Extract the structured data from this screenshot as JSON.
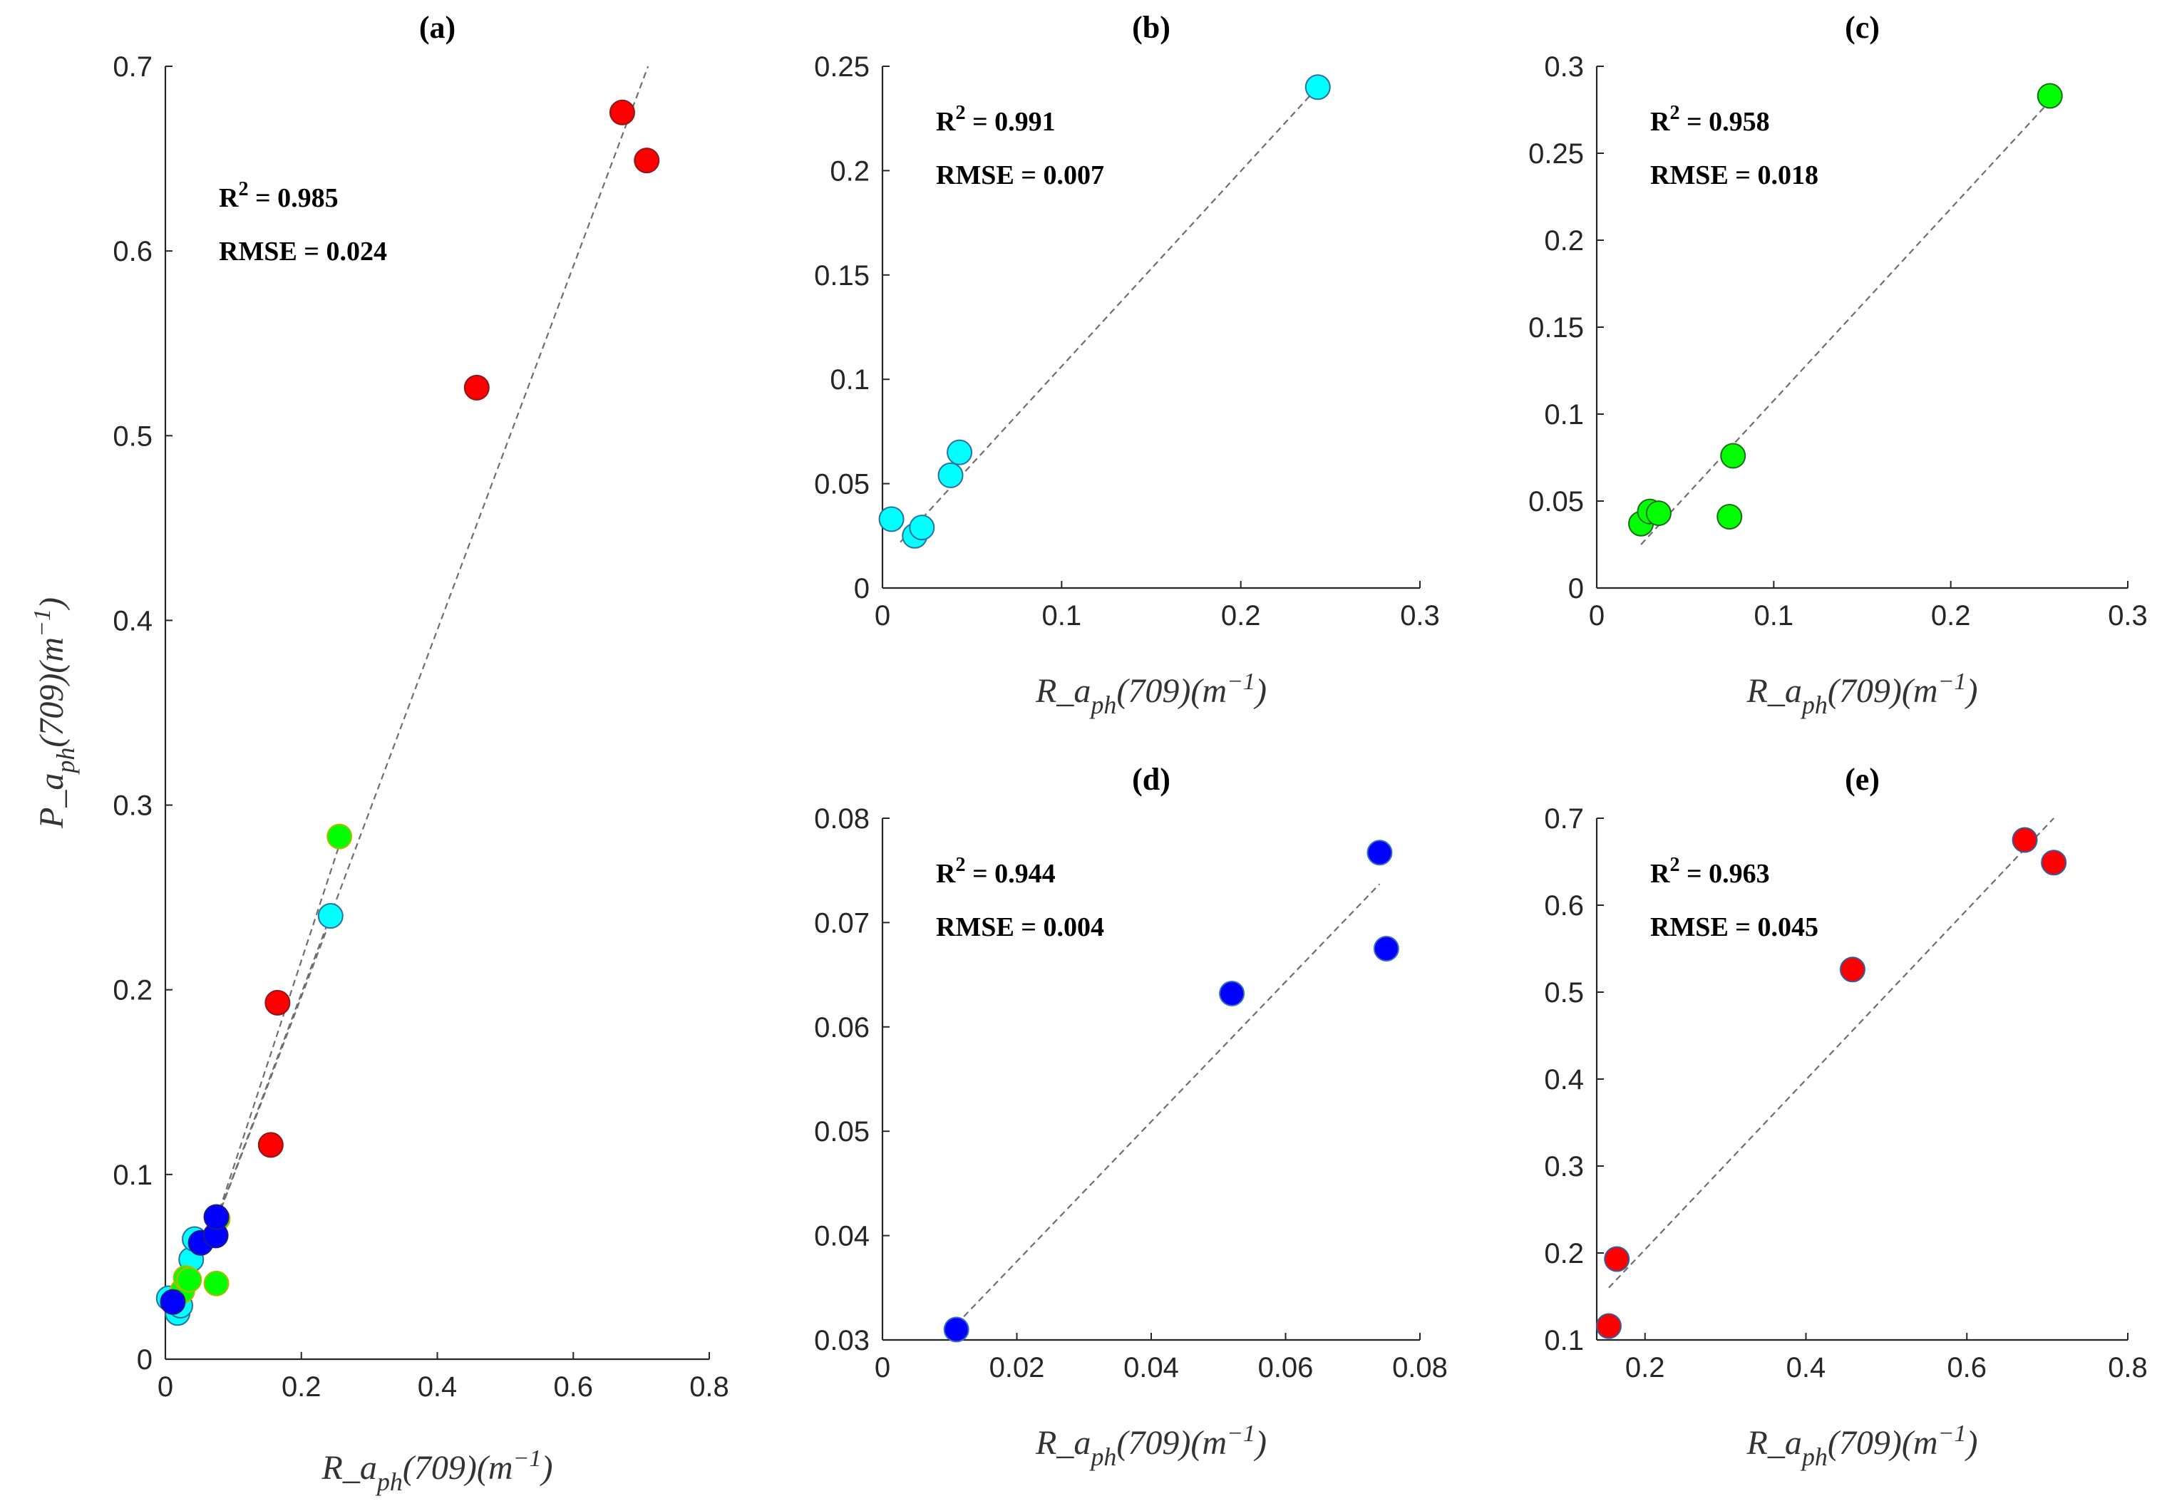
{
  "chart_data": [
    {
      "id": "a",
      "type": "scatter",
      "title": "(a)",
      "r2_label": "R",
      "r2_sup": "2",
      "r2_value": " = 0.985",
      "rmse_text": "RMSE = 0.024",
      "xlabel": {
        "pre": "R_a",
        "sub": "ph",
        "mid": "(709)(m",
        "sup": "−1",
        "post": ")"
      },
      "ylabel": {
        "pre": "P_a",
        "sub": "ph",
        "mid": "(709)(m",
        "sup": "−1",
        "post": ")"
      },
      "xlim": [
        0,
        0.8
      ],
      "ylim": [
        0,
        0.7
      ],
      "xticks": [
        "0",
        "0.2",
        "0.4",
        "0.6",
        "0.8"
      ],
      "yticks": [
        "0",
        "0.1",
        "0.2",
        "0.3",
        "0.4",
        "0.5",
        "0.6",
        "0.7"
      ],
      "fit_lines": [
        {
          "from": [
            0.07,
            0.07
          ],
          "to": [
            0.71,
            0.7
          ]
        },
        {
          "from": [
            0.07,
            0.07
          ],
          "to": [
            0.26,
            0.283
          ]
        },
        {
          "from": [
            0.06,
            0.06
          ],
          "to": [
            0.245,
            0.24
          ]
        },
        {
          "from": [
            0.07,
            0.075
          ],
          "to": [
            0.08,
            0.08
          ]
        }
      ],
      "series": [
        {
          "name": "cyan",
          "color": "#00FFFF",
          "edge": "#2f6f9f",
          "points": [
            [
              0.005,
              0.033
            ],
            [
              0.018,
              0.025
            ],
            [
              0.022,
              0.029
            ],
            [
              0.038,
              0.054
            ],
            [
              0.043,
              0.065
            ],
            [
              0.243,
              0.24
            ]
          ]
        },
        {
          "name": "green",
          "color": "#00FF00",
          "edge": "#b8b800",
          "points": [
            [
              0.025,
              0.037
            ],
            [
              0.03,
              0.044
            ],
            [
              0.035,
              0.043
            ],
            [
              0.075,
              0.041
            ],
            [
              0.077,
              0.076
            ],
            [
              0.256,
              0.283
            ]
          ]
        },
        {
          "name": "blue",
          "color": "#0000FF",
          "edge": "#1a1a8a",
          "points": [
            [
              0.011,
              0.031
            ],
            [
              0.052,
              0.063
            ],
            [
              0.074,
              0.067
            ],
            [
              0.075,
              0.077
            ]
          ]
        },
        {
          "name": "red",
          "color": "#FF0000",
          "edge": "#8a1a1a",
          "points": [
            [
              0.155,
              0.116
            ],
            [
              0.165,
              0.193
            ],
            [
              0.458,
              0.526
            ],
            [
              0.672,
              0.675
            ],
            [
              0.708,
              0.649
            ]
          ]
        }
      ]
    },
    {
      "id": "b",
      "type": "scatter",
      "title": "(b)",
      "r2_label": "R",
      "r2_sup": "2",
      "r2_value": " = 0.991",
      "rmse_text": "RMSE = 0.007",
      "xlabel": {
        "pre": "R_a",
        "sub": "ph",
        "mid": "(709)(m",
        "sup": "−1",
        "post": ")"
      },
      "xlim": [
        0,
        0.3
      ],
      "ylim": [
        0,
        0.25
      ],
      "xticks": [
        "0",
        "0.1",
        "0.2",
        "0.3"
      ],
      "yticks": [
        "0",
        "0.05",
        "0.1",
        "0.15",
        "0.2",
        "0.25"
      ],
      "fit_lines": [
        {
          "from": [
            0.01,
            0.022
          ],
          "to": [
            0.243,
            0.24
          ]
        }
      ],
      "series": [
        {
          "name": "cyan",
          "color": "#00FFFF",
          "edge": "#2f6f9f",
          "points": [
            [
              0.005,
              0.033
            ],
            [
              0.018,
              0.025
            ],
            [
              0.022,
              0.029
            ],
            [
              0.038,
              0.054
            ],
            [
              0.043,
              0.065
            ],
            [
              0.243,
              0.24
            ]
          ]
        }
      ]
    },
    {
      "id": "c",
      "type": "scatter",
      "title": "(c)",
      "r2_label": "R",
      "r2_sup": "2",
      "r2_value": " = 0.958",
      "rmse_text": "RMSE = 0.018",
      "xlabel": {
        "pre": "R_a",
        "sub": "ph",
        "mid": "(709)(m",
        "sup": "−1",
        "post": ")"
      },
      "xlim": [
        0,
        0.3
      ],
      "ylim": [
        0,
        0.3
      ],
      "xticks": [
        "0",
        "0.1",
        "0.2",
        "0.3"
      ],
      "yticks": [
        "0",
        "0.05",
        "0.1",
        "0.15",
        "0.2",
        "0.25",
        "0.3"
      ],
      "fit_lines": [
        {
          "from": [
            0.025,
            0.025
          ],
          "to": [
            0.256,
            0.28
          ]
        }
      ],
      "series": [
        {
          "name": "green",
          "color": "#00FF00",
          "edge": "#1f6a1f",
          "points": [
            [
              0.025,
              0.037
            ],
            [
              0.03,
              0.044
            ],
            [
              0.035,
              0.043
            ],
            [
              0.075,
              0.041
            ],
            [
              0.077,
              0.076
            ],
            [
              0.256,
              0.283
            ]
          ]
        }
      ]
    },
    {
      "id": "d",
      "type": "scatter",
      "title": "(d)",
      "r2_label": "R",
      "r2_sup": "2",
      "r2_value": " = 0.944",
      "rmse_text": "RMSE = 0.004",
      "xlabel": {
        "pre": "R_a",
        "sub": "ph",
        "mid": "(709)(m",
        "sup": "−1",
        "post": ")"
      },
      "xlim": [
        0,
        0.08
      ],
      "ylim": [
        0.03,
        0.08
      ],
      "xticks": [
        "0",
        "0.02",
        "0.04",
        "0.06",
        "0.08"
      ],
      "yticks": [
        "0.03",
        "0.04",
        "0.05",
        "0.06",
        "0.07",
        "0.08"
      ],
      "fit_lines": [
        {
          "from": [
            0.011,
            0.0315
          ],
          "to": [
            0.074,
            0.0737
          ]
        }
      ],
      "series": [
        {
          "name": "blue",
          "color": "#0000FF",
          "edge": "#3a6fbf",
          "points": [
            [
              0.011,
              0.031
            ],
            [
              0.052,
              0.0632
            ],
            [
              0.074,
              0.0767
            ],
            [
              0.075,
              0.0675
            ]
          ]
        }
      ]
    },
    {
      "id": "e",
      "type": "scatter",
      "title": "(e)",
      "r2_label": "R",
      "r2_sup": "2",
      "r2_value": " = 0.963",
      "rmse_text": "RMSE = 0.045",
      "xlabel": {
        "pre": "R_a",
        "sub": "ph",
        "mid": "(709)(m",
        "sup": "−1",
        "post": ")"
      },
      "xlim": [
        0.14,
        0.8
      ],
      "ylim": [
        0.1,
        0.7
      ],
      "xticks": [
        "0.2",
        "0.4",
        "0.6",
        "0.8"
      ],
      "yticks": [
        "0.1",
        "0.2",
        "0.3",
        "0.4",
        "0.5",
        "0.6",
        "0.7"
      ],
      "fit_lines": [
        {
          "from": [
            0.155,
            0.16
          ],
          "to": [
            0.708,
            0.7
          ]
        }
      ],
      "series": [
        {
          "name": "red",
          "color": "#FF0000",
          "edge": "#2f5f9f",
          "points": [
            [
              0.155,
              0.116
            ],
            [
              0.165,
              0.193
            ],
            [
              0.458,
              0.526
            ],
            [
              0.672,
              0.675
            ],
            [
              0.708,
              0.649
            ]
          ]
        }
      ]
    }
  ]
}
